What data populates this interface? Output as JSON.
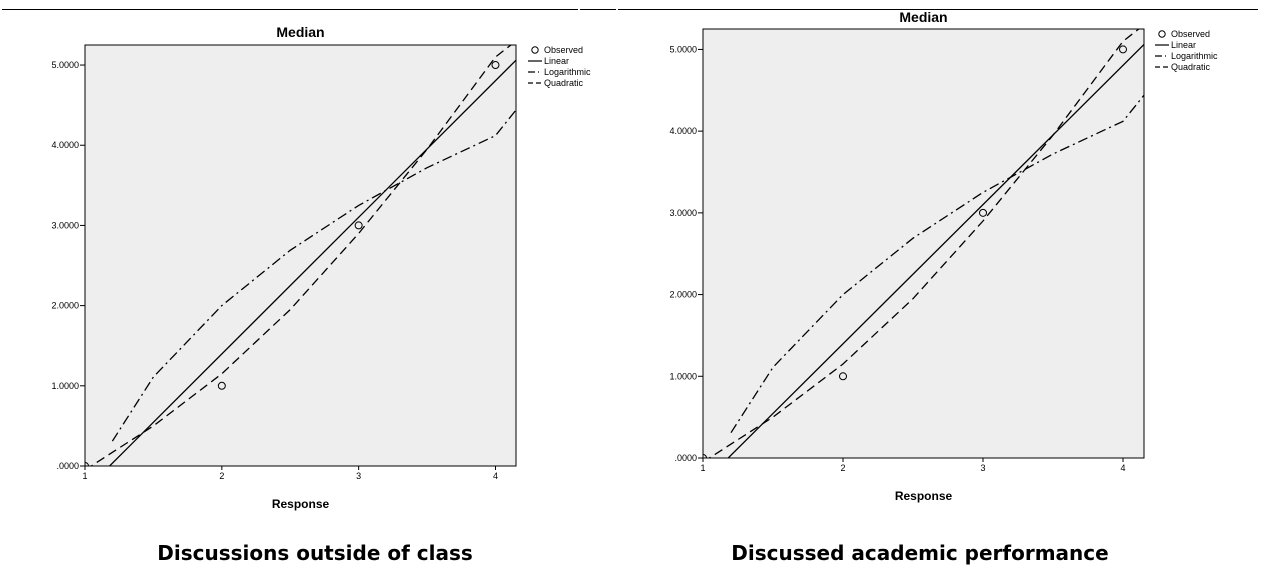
{
  "chart_data": [
    {
      "type": "line",
      "title": "Median",
      "xlabel": "Response",
      "ylabel": "",
      "xlim": [
        1,
        4.15
      ],
      "ylim": [
        0,
        5.25
      ],
      "x_ticks": [
        1,
        2,
        3,
        4
      ],
      "x_tick_labels": [
        "1",
        "2",
        "3",
        "4"
      ],
      "y_ticks": [
        0,
        1,
        2,
        3,
        4,
        5
      ],
      "y_tick_labels": [
        ".0000",
        "1.0000",
        "2.0000",
        "3.0000",
        "4.0000",
        "5.0000"
      ],
      "grid": false,
      "legend_position": "top-right outside",
      "caption": "Discussions outside of class",
      "observed": {
        "name": "Observed",
        "x": [
          1,
          2,
          3,
          4
        ],
        "y": [
          0,
          1,
          3,
          5
        ]
      },
      "series": [
        {
          "name": "Linear",
          "style": "solid",
          "x": [
            1.18,
            4.15
          ],
          "y": [
            0,
            5.06
          ]
        },
        {
          "name": "Logarithmic",
          "style": "dash-dot",
          "x": [
            1.2,
            1.5,
            2,
            2.5,
            3,
            3.5,
            4,
            4.15
          ],
          "y": [
            0.31,
            1.11,
            2.0,
            2.69,
            3.25,
            3.72,
            4.12,
            4.44
          ]
        },
        {
          "name": "Quadratic",
          "style": "dashed",
          "x": [
            1,
            1.5,
            2,
            2.5,
            3,
            3.5,
            4,
            4.15
          ],
          "y": [
            -0.05,
            0.5,
            1.15,
            1.95,
            2.9,
            3.95,
            5.1,
            5.3
          ]
        }
      ]
    },
    {
      "type": "line",
      "title": "Median",
      "xlabel": "Response",
      "ylabel": "",
      "xlim": [
        1,
        4.15
      ],
      "ylim": [
        0,
        5.25
      ],
      "x_ticks": [
        1,
        2,
        3,
        4
      ],
      "x_tick_labels": [
        "1",
        "2",
        "3",
        "4"
      ],
      "y_ticks": [
        0,
        1,
        2,
        3,
        4,
        5
      ],
      "y_tick_labels": [
        ".0000",
        "1.0000",
        "2.0000",
        "3.0000",
        "4.0000",
        "5.0000"
      ],
      "grid": false,
      "legend_position": "top-right outside",
      "caption": "Discussed academic performance",
      "observed": {
        "name": "Observed",
        "x": [
          1,
          2,
          3,
          4
        ],
        "y": [
          0,
          1,
          3,
          5
        ]
      },
      "series": [
        {
          "name": "Linear",
          "style": "solid",
          "x": [
            1.18,
            4.15
          ],
          "y": [
            0,
            5.06
          ]
        },
        {
          "name": "Logarithmic",
          "style": "dash-dot",
          "x": [
            1.2,
            1.5,
            2,
            2.5,
            3,
            3.5,
            4,
            4.15
          ],
          "y": [
            0.31,
            1.11,
            2.0,
            2.69,
            3.25,
            3.72,
            4.12,
            4.44
          ]
        },
        {
          "name": "Quadratic",
          "style": "dashed",
          "x": [
            1,
            1.5,
            2,
            2.5,
            3,
            3.5,
            4,
            4.15
          ],
          "y": [
            -0.05,
            0.5,
            1.15,
            1.95,
            2.9,
            3.95,
            5.1,
            5.3
          ]
        }
      ]
    }
  ],
  "colors": {
    "plot_background": "#eeeeee",
    "ink": "#000000"
  }
}
